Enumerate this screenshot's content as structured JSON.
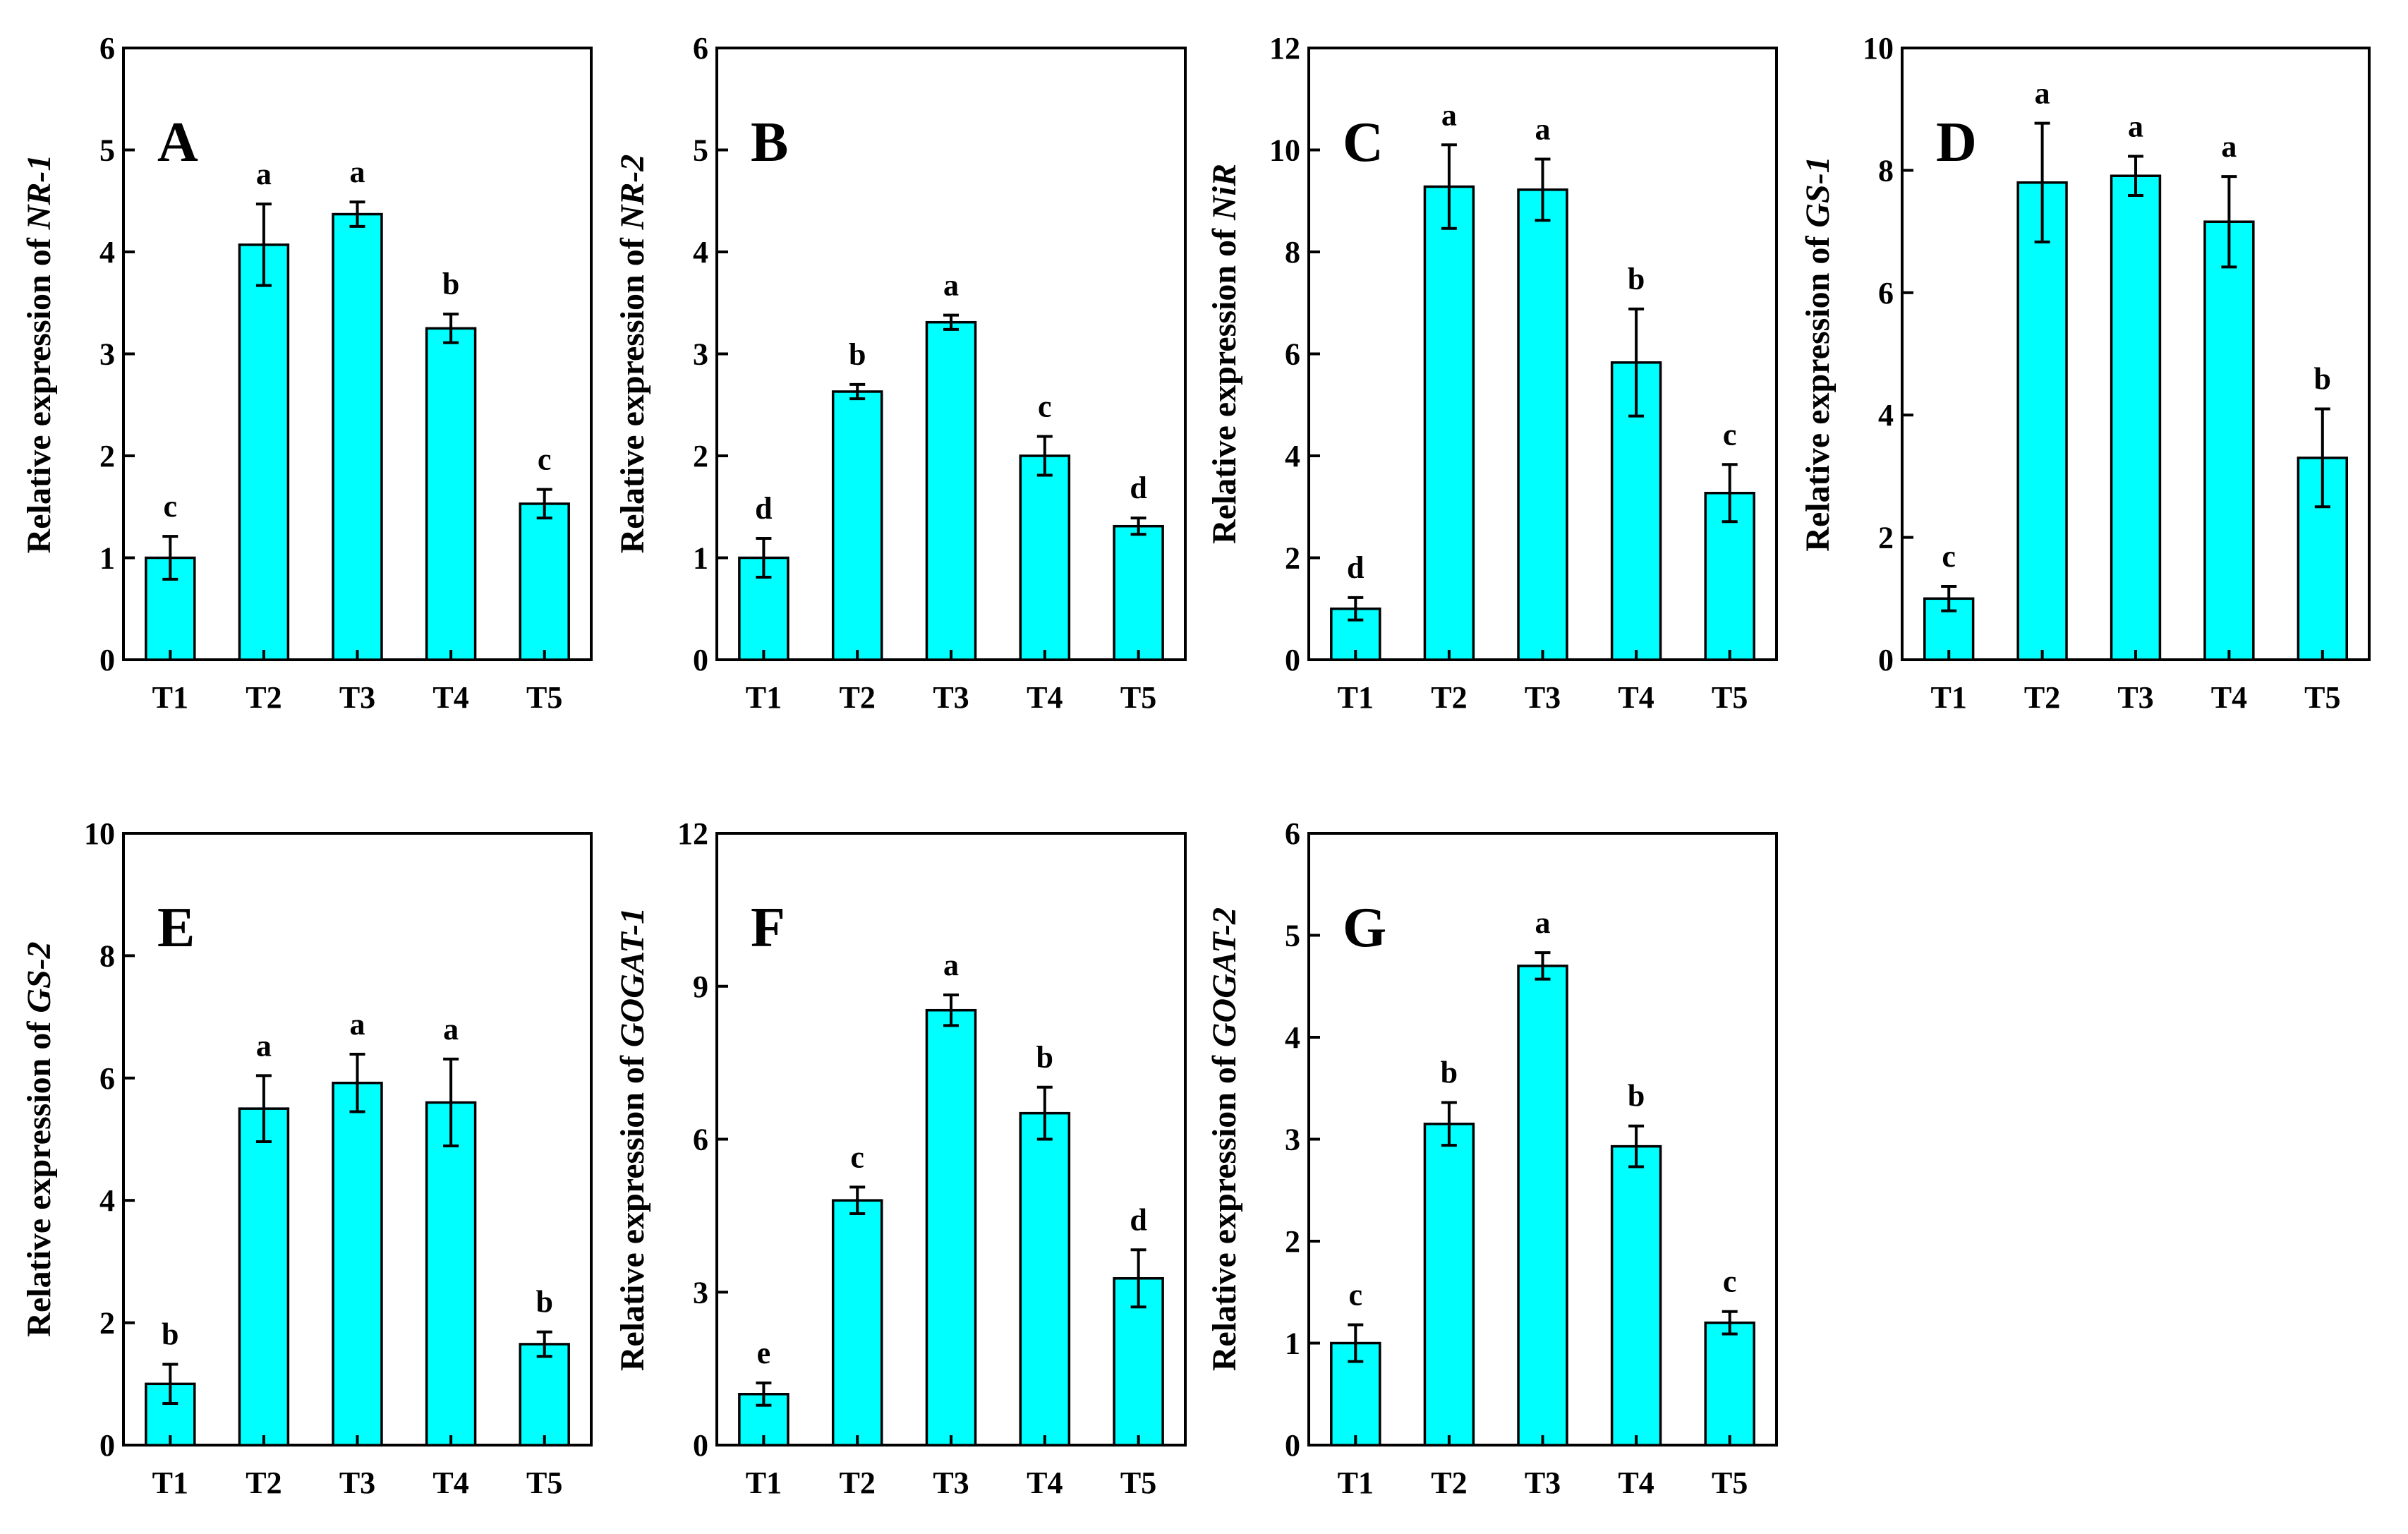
{
  "chart_data": [
    {
      "type": "bar",
      "panel_label": "A",
      "ylabel_prefix": "Relative expression of ",
      "gene": "NR-1",
      "categories": [
        "T1",
        "T2",
        "T3",
        "T4",
        "T5"
      ],
      "values": [
        1.0,
        4.07,
        4.37,
        3.25,
        1.53
      ],
      "errors": [
        0.21,
        0.4,
        0.12,
        0.14,
        0.14
      ],
      "significance": [
        "c",
        "a",
        "a",
        "b",
        "c"
      ],
      "ylim": [
        0,
        6
      ],
      "yticks": [
        0,
        1,
        2,
        3,
        4,
        5,
        6
      ],
      "bar_color": "#00FFFF"
    },
    {
      "type": "bar",
      "panel_label": "B",
      "ylabel_prefix": "Relative expression of ",
      "gene": "NR-2",
      "categories": [
        "T1",
        "T2",
        "T3",
        "T4",
        "T5"
      ],
      "values": [
        1.0,
        2.63,
        3.31,
        2.0,
        1.31
      ],
      "errors": [
        0.19,
        0.07,
        0.07,
        0.19,
        0.08
      ],
      "significance": [
        "d",
        "b",
        "a",
        "c",
        "d"
      ],
      "ylim": [
        0,
        6
      ],
      "yticks": [
        0,
        1,
        2,
        3,
        4,
        5,
        6
      ],
      "bar_color": "#00FFFF"
    },
    {
      "type": "bar",
      "panel_label": "C",
      "ylabel_prefix": "Relative expression of ",
      "gene": "NiR",
      "categories": [
        "T1",
        "T2",
        "T3",
        "T4",
        "T5"
      ],
      "values": [
        1.0,
        9.28,
        9.22,
        5.83,
        3.27
      ],
      "errors": [
        0.22,
        0.82,
        0.6,
        1.05,
        0.56
      ],
      "significance": [
        "d",
        "a",
        "a",
        "b",
        "c"
      ],
      "ylim": [
        0,
        12
      ],
      "yticks": [
        0,
        2,
        4,
        6,
        8,
        10,
        12
      ],
      "bar_color": "#00FFFF"
    },
    {
      "type": "bar",
      "panel_label": "D",
      "ylabel_prefix": "Relative expression of ",
      "gene": "GS-1",
      "categories": [
        "T1",
        "T2",
        "T3",
        "T4",
        "T5"
      ],
      "values": [
        1.0,
        7.8,
        7.91,
        7.16,
        3.3
      ],
      "errors": [
        0.2,
        0.97,
        0.32,
        0.74,
        0.8
      ],
      "significance": [
        "c",
        "a",
        "a",
        "a",
        "b"
      ],
      "ylim": [
        0,
        10
      ],
      "yticks": [
        0,
        2,
        4,
        6,
        8,
        10
      ],
      "bar_color": "#00FFFF"
    },
    {
      "type": "bar",
      "panel_label": "E",
      "ylabel_prefix": "Relative expression of ",
      "gene": "GS-2",
      "categories": [
        "T1",
        "T2",
        "T3",
        "T4",
        "T5"
      ],
      "values": [
        1.0,
        5.5,
        5.92,
        5.6,
        1.65
      ],
      "errors": [
        0.32,
        0.54,
        0.47,
        0.71,
        0.2
      ],
      "significance": [
        "b",
        "a",
        "a",
        "a",
        "b"
      ],
      "ylim": [
        0,
        10
      ],
      "yticks": [
        0,
        2,
        4,
        6,
        8,
        10
      ],
      "bar_color": "#00FFFF"
    },
    {
      "type": "bar",
      "panel_label": "F",
      "ylabel_prefix": "Relative expression of ",
      "gene": "GOGAT-1",
      "categories": [
        "T1",
        "T2",
        "T3",
        "T4",
        "T5"
      ],
      "values": [
        1.0,
        4.8,
        8.53,
        6.51,
        3.27
      ],
      "errors": [
        0.22,
        0.26,
        0.3,
        0.51,
        0.56
      ],
      "significance": [
        "e",
        "c",
        "a",
        "b",
        "d"
      ],
      "ylim": [
        0,
        12
      ],
      "yticks": [
        0,
        3,
        6,
        9,
        12
      ],
      "bar_color": "#00FFFF"
    },
    {
      "type": "bar",
      "panel_label": "G",
      "ylabel_prefix": "Relative expression of ",
      "gene": "GOGAT-2",
      "categories": [
        "T1",
        "T2",
        "T3",
        "T4",
        "T5"
      ],
      "values": [
        1.0,
        3.15,
        4.7,
        2.93,
        1.2
      ],
      "errors": [
        0.18,
        0.21,
        0.13,
        0.2,
        0.11
      ],
      "significance": [
        "c",
        "b",
        "a",
        "b",
        "c"
      ],
      "ylim": [
        0,
        6
      ],
      "yticks": [
        0,
        1,
        2,
        3,
        4,
        5,
        6
      ],
      "bar_color": "#00FFFF"
    }
  ]
}
